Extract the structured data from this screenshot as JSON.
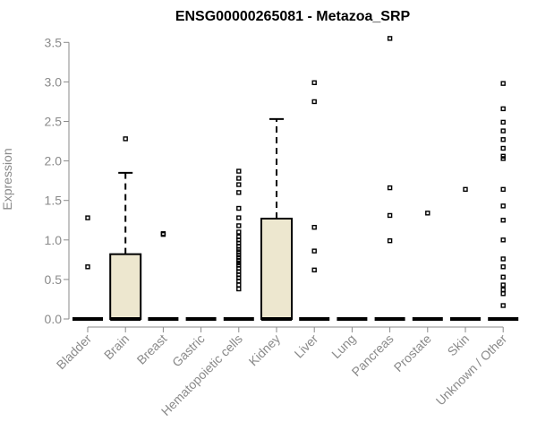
{
  "chart_data": {
    "type": "boxplot",
    "title": "ENSG00000265081 - Metazoa_SRP",
    "xlabel": "",
    "ylabel": "Expression",
    "ylim": [
      0,
      3.5
    ],
    "yticks": [
      0.0,
      0.5,
      1.0,
      1.5,
      2.0,
      2.5,
      3.0,
      3.5
    ],
    "ytick_labels": [
      "0.0",
      "0.5",
      "1.0",
      "1.5",
      "2.0",
      "2.5",
      "3.0",
      "3.5"
    ],
    "box_fill": "#ede7cf",
    "categories": [
      "Bladder",
      "Brain",
      "Breast",
      "Gastric",
      "Hematopoietic cells",
      "Kidney",
      "Liver",
      "Lung",
      "Pancreas",
      "Prostate",
      "Skin",
      "Unknown / Other"
    ],
    "boxes": [
      {
        "q1": 0,
        "median": 0,
        "q3": 0,
        "whisker_low": 0,
        "whisker_high": 0,
        "outliers": [
          0.66,
          1.28
        ]
      },
      {
        "q1": 0,
        "median": 0,
        "q3": 0.82,
        "whisker_low": 0,
        "whisker_high": 1.85,
        "outliers": [
          2.28
        ]
      },
      {
        "q1": 0,
        "median": 0,
        "q3": 0,
        "whisker_low": 0,
        "whisker_high": 0,
        "outliers": [
          1.07,
          1.08
        ]
      },
      {
        "q1": 0,
        "median": 0,
        "q3": 0,
        "whisker_low": 0,
        "whisker_high": 0,
        "outliers": []
      },
      {
        "q1": 0,
        "median": 0,
        "q3": 0,
        "whisker_low": 0,
        "whisker_high": 0,
        "outliers": [
          0.38,
          0.43,
          0.48,
          0.52,
          0.56,
          0.6,
          0.64,
          0.68,
          0.71,
          0.74,
          0.78,
          0.81,
          0.85,
          0.88,
          0.92,
          0.96,
          1.0,
          1.04,
          1.1,
          1.18,
          1.28,
          1.4,
          1.6,
          1.7,
          1.78,
          1.87
        ]
      },
      {
        "q1": 0,
        "median": 0,
        "q3": 1.27,
        "whisker_low": 0,
        "whisker_high": 2.53,
        "outliers": []
      },
      {
        "q1": 0,
        "median": 0,
        "q3": 0,
        "whisker_low": 0,
        "whisker_high": 0,
        "outliers": [
          0.62,
          0.86,
          1.16,
          2.75,
          2.99
        ]
      },
      {
        "q1": 0,
        "median": 0,
        "q3": 0,
        "whisker_low": 0,
        "whisker_high": 0,
        "outliers": []
      },
      {
        "q1": 0,
        "median": 0,
        "q3": 0,
        "whisker_low": 0,
        "whisker_high": 0,
        "outliers": [
          0.99,
          1.31,
          1.66,
          3.55
        ]
      },
      {
        "q1": 0,
        "median": 0,
        "q3": 0,
        "whisker_low": 0,
        "whisker_high": 0,
        "outliers": [
          1.34
        ]
      },
      {
        "q1": 0,
        "median": 0,
        "q3": 0,
        "whisker_low": 0,
        "whisker_high": 0,
        "outliers": [
          1.64
        ]
      },
      {
        "q1": 0,
        "median": 0,
        "q3": 0,
        "whisker_low": 0,
        "whisker_high": 0,
        "outliers": [
          0.17,
          0.32,
          0.37,
          0.43,
          0.53,
          0.66,
          0.76,
          1.0,
          1.25,
          1.43,
          1.64,
          2.03,
          2.06,
          2.16,
          2.27,
          2.38,
          2.49,
          2.66,
          2.98
        ]
      }
    ]
  }
}
